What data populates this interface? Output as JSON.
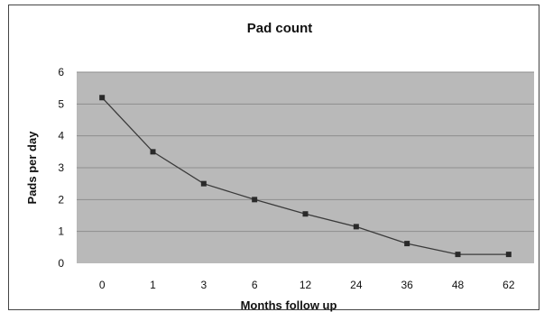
{
  "chart_data": {
    "type": "line",
    "title": "Pad count",
    "xlabel": "Months follow up",
    "ylabel": "Pads per day",
    "categories": [
      "0",
      "1",
      "3",
      "6",
      "12",
      "24",
      "36",
      "48",
      "62"
    ],
    "series": [
      {
        "values": [
          5.2,
          3.5,
          2.5,
          2.0,
          1.55,
          1.15,
          0.62,
          0.28,
          0.28
        ]
      }
    ],
    "ylim": [
      0,
      6
    ],
    "yticks": [
      "0",
      "1",
      "2",
      "3",
      "4",
      "5",
      "6"
    ],
    "grid": true,
    "legend": "none",
    "colors": {
      "plot_background": "#b9b9b9",
      "gridline": "#8e8e8e",
      "line": "#3a3a3a",
      "marker": "#2a2a2a"
    }
  }
}
